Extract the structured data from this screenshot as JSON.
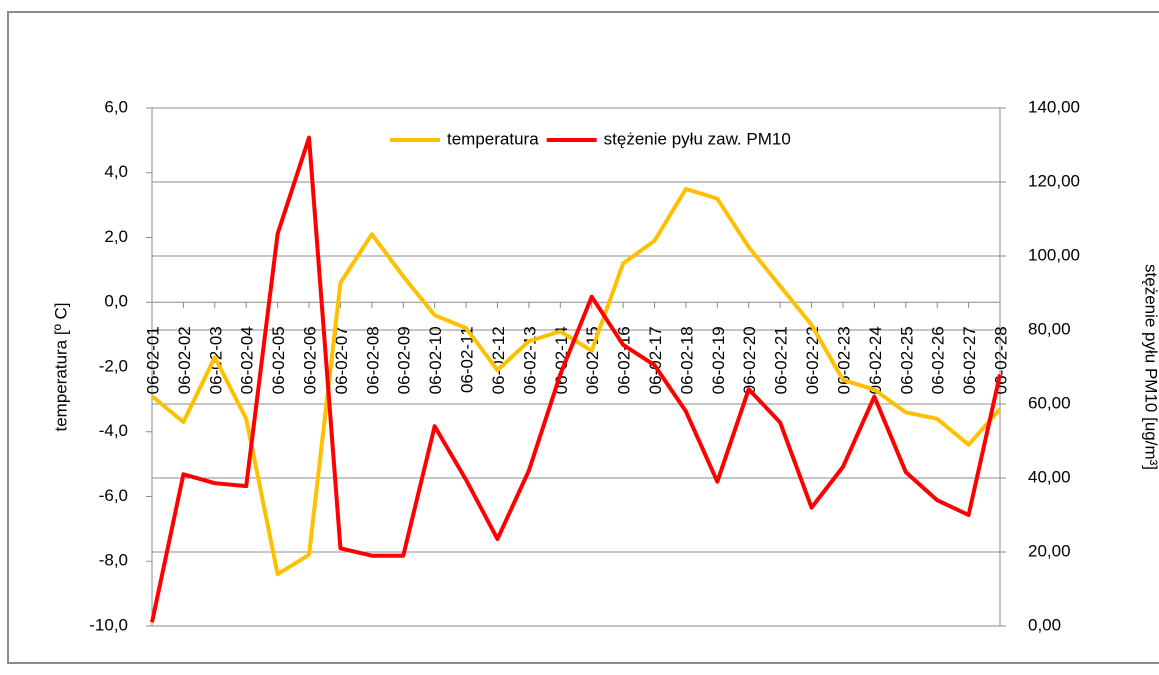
{
  "chart_data": {
    "type": "line",
    "categories": [
      "06-02-01",
      "06-02-02",
      "06-02-03",
      "06-02-04",
      "06-02-05",
      "06-02-06",
      "06-02-07",
      "06-02-08",
      "06-02-09",
      "06-02-10",
      "06-02-11",
      "06-02-12",
      "06-02-13",
      "06-02-14",
      "06-02-15",
      "06-02-16",
      "06-02-17",
      "06-02-18",
      "06-02-19",
      "06-02-20",
      "06-02-21",
      "06-02-22",
      "06-02-23",
      "06-02-24",
      "06-02-25",
      "06-02-26",
      "06-02-27",
      "06-02-28"
    ],
    "series": [
      {
        "name": "temperatura",
        "color": "#ffc000",
        "values": [
          -2.9,
          -3.7,
          -1.7,
          -3.6,
          -8.4,
          -7.8,
          0.6,
          2.1,
          0.8,
          -0.4,
          -0.8,
          -2.1,
          -1.2,
          -0.9,
          -1.5,
          1.2,
          1.9,
          3.5,
          3.2,
          1.7,
          0.5,
          -0.7,
          -2.4,
          -2.7,
          -3.4,
          -3.6,
          -4.4,
          -3.3
        ]
      },
      {
        "name": "stężenie pyłu zaw. PM10",
        "color": "#ff0000",
        "axis": "y2",
        "values": [
          1,
          41,
          38.6,
          37.8,
          106,
          132,
          21,
          19,
          19,
          54,
          39.5,
          23.5,
          42,
          68,
          89,
          76,
          70.5,
          58,
          39,
          64,
          55,
          32,
          43,
          62,
          41.6,
          34,
          30,
          68
        ]
      }
    ],
    "ylabel": "temperatura [º C]",
    "y2label": "stężenie pyłu PM10 [ug/m³]",
    "ylim": [
      -10,
      6
    ],
    "yticks": [
      {
        "value": -10,
        "label": "-10,0"
      },
      {
        "value": -8,
        "label": "-8,0"
      },
      {
        "value": -6,
        "label": "-6,0"
      },
      {
        "value": -4,
        "label": "-4,0"
      },
      {
        "value": -2,
        "label": "-2,0"
      },
      {
        "value": 0,
        "label": "0,0"
      },
      {
        "value": 2,
        "label": "2,0"
      },
      {
        "value": 4,
        "label": "4,0"
      },
      {
        "value": 6,
        "label": "6,0"
      }
    ],
    "y2lim": [
      0,
      140
    ],
    "y2ticks": [
      {
        "value": 0,
        "label": "0,00"
      },
      {
        "value": 20,
        "label": "20,00"
      },
      {
        "value": 40,
        "label": "40,00"
      },
      {
        "value": 60,
        "label": "60,00"
      },
      {
        "value": 80,
        "label": "80,00"
      },
      {
        "value": 100,
        "label": "100,00"
      },
      {
        "value": 120,
        "label": "120,00"
      },
      {
        "value": 140,
        "label": "140,00"
      }
    ],
    "grid": true,
    "legend": "top"
  }
}
